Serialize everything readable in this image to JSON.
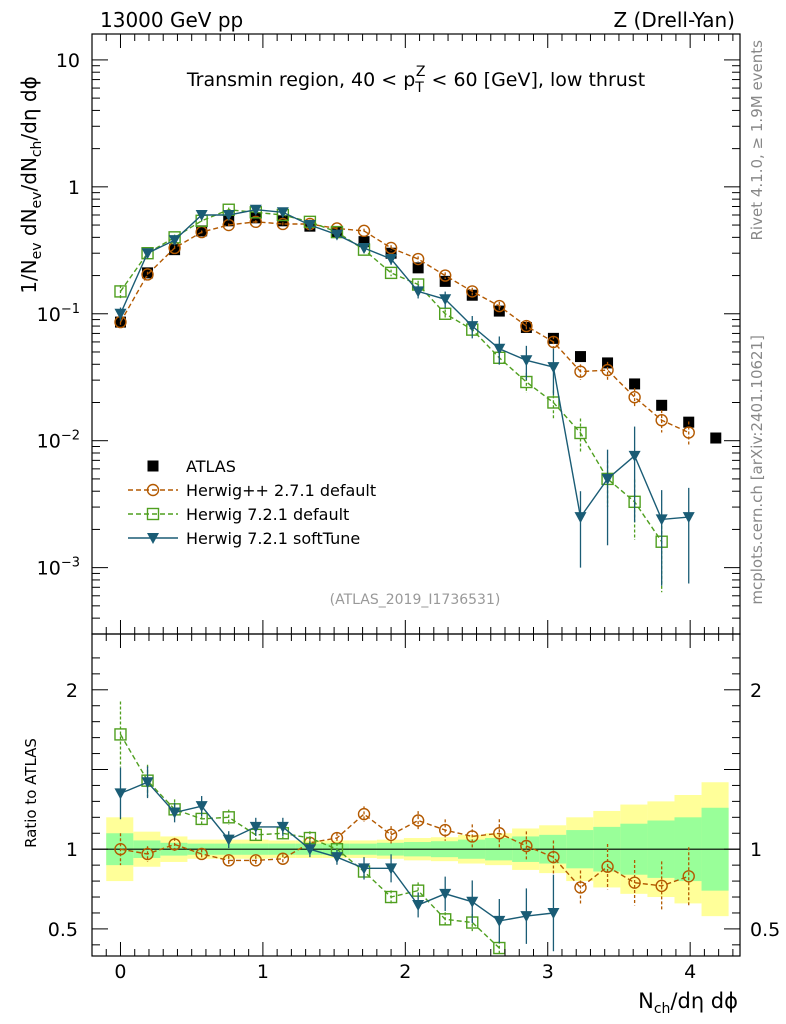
{
  "header": {
    "left": "13000 GeV pp",
    "right": "Z (Drell-Yan)",
    "side_top": "Rivet 4.1.0, ≥ 1.9M events",
    "side_bottom": "mcplots.cern.ch [arXiv:2401.10621]"
  },
  "chart_data": {
    "type": "scatter",
    "title": {
      "prefix": "Transmin region, 40 < p",
      "sub": "T",
      "sup": "Z",
      "suffix": " < 60 [GeV], low thrust"
    },
    "watermark": "(ATLAS_2019_I1736531)",
    "xlabel": {
      "main": "N",
      "sub": "ch",
      "rest": "/dη dϕ"
    },
    "ylabel": {
      "p1": "1/N",
      "s1": "ev",
      "p2": " dN",
      "s2": "ev",
      "p3": "/dN",
      "s3": "ch",
      "p4": "/dη dϕ"
    },
    "ratio_ylabel": "Ratio to ATLAS",
    "xlim": [
      -0.2,
      4.35
    ],
    "ylim": [
      0.0003,
      16
    ],
    "ratio_ylim": [
      0.33,
      2.35
    ],
    "x_ticks": [
      {
        "value": 0,
        "label": "0"
      },
      {
        "value": 1,
        "label": "1"
      },
      {
        "value": 2,
        "label": "2"
      },
      {
        "value": 3,
        "label": "3"
      },
      {
        "value": 4,
        "label": "4"
      }
    ],
    "y_ticks": [
      {
        "value": 10,
        "base": "10",
        "exp": ""
      },
      {
        "value": 1,
        "base": "1",
        "exp": ""
      },
      {
        "value": 0.1,
        "base": "10",
        "exp": "−1"
      },
      {
        "value": 0.01,
        "base": "10",
        "exp": "−2"
      },
      {
        "value": 0.001,
        "base": "10",
        "exp": "−3"
      }
    ],
    "ratio_ticks": [
      {
        "value": 2,
        "label": "2"
      },
      {
        "value": 1,
        "label": "1"
      },
      {
        "value": 0.5,
        "label": "0.5"
      }
    ],
    "x": [
      0.0,
      0.19,
      0.38,
      0.57,
      0.76,
      0.95,
      1.14,
      1.33,
      1.52,
      1.71,
      1.9,
      2.09,
      2.28,
      2.47,
      2.66,
      2.85,
      3.04,
      3.23,
      3.42,
      3.61,
      3.8,
      3.99,
      4.18
    ],
    "bin_edges": [
      -0.1,
      0.09,
      0.28,
      0.47,
      0.66,
      0.85,
      1.04,
      1.23,
      1.42,
      1.61,
      1.8,
      1.99,
      2.18,
      2.37,
      2.56,
      2.75,
      2.94,
      3.13,
      3.32,
      3.51,
      3.7,
      3.89,
      4.08,
      4.27
    ],
    "band_inner": [
      0.1,
      0.055,
      0.04,
      0.035,
      0.035,
      0.035,
      0.035,
      0.035,
      0.035,
      0.035,
      0.04,
      0.045,
      0.05,
      0.06,
      0.07,
      0.08,
      0.09,
      0.12,
      0.14,
      0.16,
      0.18,
      0.2,
      0.26
    ],
    "band_outer": [
      0.2,
      0.11,
      0.08,
      0.06,
      0.06,
      0.06,
      0.055,
      0.055,
      0.055,
      0.055,
      0.06,
      0.07,
      0.075,
      0.09,
      0.1,
      0.13,
      0.15,
      0.2,
      0.24,
      0.28,
      0.3,
      0.34,
      0.42
    ],
    "series": [
      {
        "name": "ATLAS",
        "style": "data",
        "color": "#000000",
        "values": [
          0.086,
          0.21,
          0.32,
          0.45,
          0.54,
          0.57,
          0.54,
          0.49,
          0.44,
          0.37,
          0.3,
          0.23,
          0.18,
          0.14,
          0.105,
          0.078,
          0.064,
          0.046,
          0.041,
          0.028,
          0.019,
          0.014,
          0.0105
        ]
      },
      {
        "name": "Herwig++ 2.7.1 default",
        "style": "dashed-circle",
        "color": "#b35900",
        "values": [
          0.086,
          0.204,
          0.33,
          0.44,
          0.5,
          0.53,
          0.51,
          0.51,
          0.47,
          0.45,
          0.33,
          0.27,
          0.2,
          0.15,
          0.115,
          0.08,
          0.06,
          0.035,
          0.036,
          0.022,
          0.0145,
          0.0116,
          null
        ],
        "ratio": [
          1.0,
          0.97,
          1.03,
          0.97,
          0.93,
          0.93,
          0.94,
          1.04,
          1.07,
          1.22,
          1.09,
          1.18,
          1.12,
          1.08,
          1.1,
          1.02,
          0.95,
          0.76,
          0.89,
          0.79,
          0.77,
          0.83,
          null
        ],
        "err": [
          0.1,
          0.05,
          0.04,
          0.03,
          0.03,
          0.03,
          0.03,
          0.03,
          0.03,
          0.04,
          0.05,
          0.05,
          0.06,
          0.07,
          0.08,
          0.09,
          0.11,
          0.14,
          0.16,
          0.18,
          0.2,
          0.22,
          null
        ]
      },
      {
        "name": "Herwig 7.2.1 default",
        "style": "dashed-square",
        "color": "#4f9f1f",
        "values": [
          0.15,
          0.3,
          0.4,
          0.54,
          0.66,
          0.63,
          0.6,
          0.53,
          0.44,
          0.32,
          0.21,
          0.17,
          0.1,
          0.075,
          0.045,
          0.029,
          0.02,
          0.0115,
          0.005,
          0.0033,
          0.0016,
          null,
          null
        ],
        "ratio": [
          1.72,
          1.43,
          1.25,
          1.19,
          1.2,
          1.09,
          1.1,
          1.07,
          1.0,
          0.86,
          0.7,
          0.74,
          0.56,
          0.54,
          0.38,
          null,
          null,
          null,
          null,
          null,
          null,
          null,
          null
        ],
        "err": [
          0.12,
          0.07,
          0.05,
          0.04,
          0.04,
          0.04,
          0.04,
          0.04,
          0.04,
          0.05,
          0.06,
          0.07,
          0.08,
          0.1,
          0.12,
          0.18,
          0.25,
          0.3,
          0.4,
          0.5,
          0.6,
          null,
          null
        ]
      },
      {
        "name": "Herwig 7.2.1 softTune",
        "style": "solid-triangle",
        "color": "#1a5c75",
        "values": [
          0.1,
          0.3,
          0.38,
          0.6,
          0.6,
          0.66,
          0.63,
          0.5,
          0.42,
          0.33,
          0.27,
          0.15,
          0.13,
          0.08,
          0.053,
          0.043,
          0.038,
          0.0025,
          0.005,
          0.0076,
          0.0024,
          0.0025,
          null
        ],
        "ratio": [
          1.35,
          1.42,
          1.23,
          1.27,
          1.06,
          1.14,
          1.14,
          1.0,
          0.95,
          0.88,
          0.88,
          0.65,
          0.72,
          0.67,
          0.55,
          0.58,
          0.6,
          null,
          null,
          null,
          null,
          null,
          null
        ],
        "err": [
          0.12,
          0.07,
          0.05,
          0.05,
          0.05,
          0.05,
          0.05,
          0.05,
          0.05,
          0.08,
          0.1,
          0.12,
          0.15,
          0.2,
          0.25,
          0.3,
          0.4,
          0.6,
          0.7,
          0.7,
          0.7,
          0.7,
          null
        ]
      }
    ]
  }
}
